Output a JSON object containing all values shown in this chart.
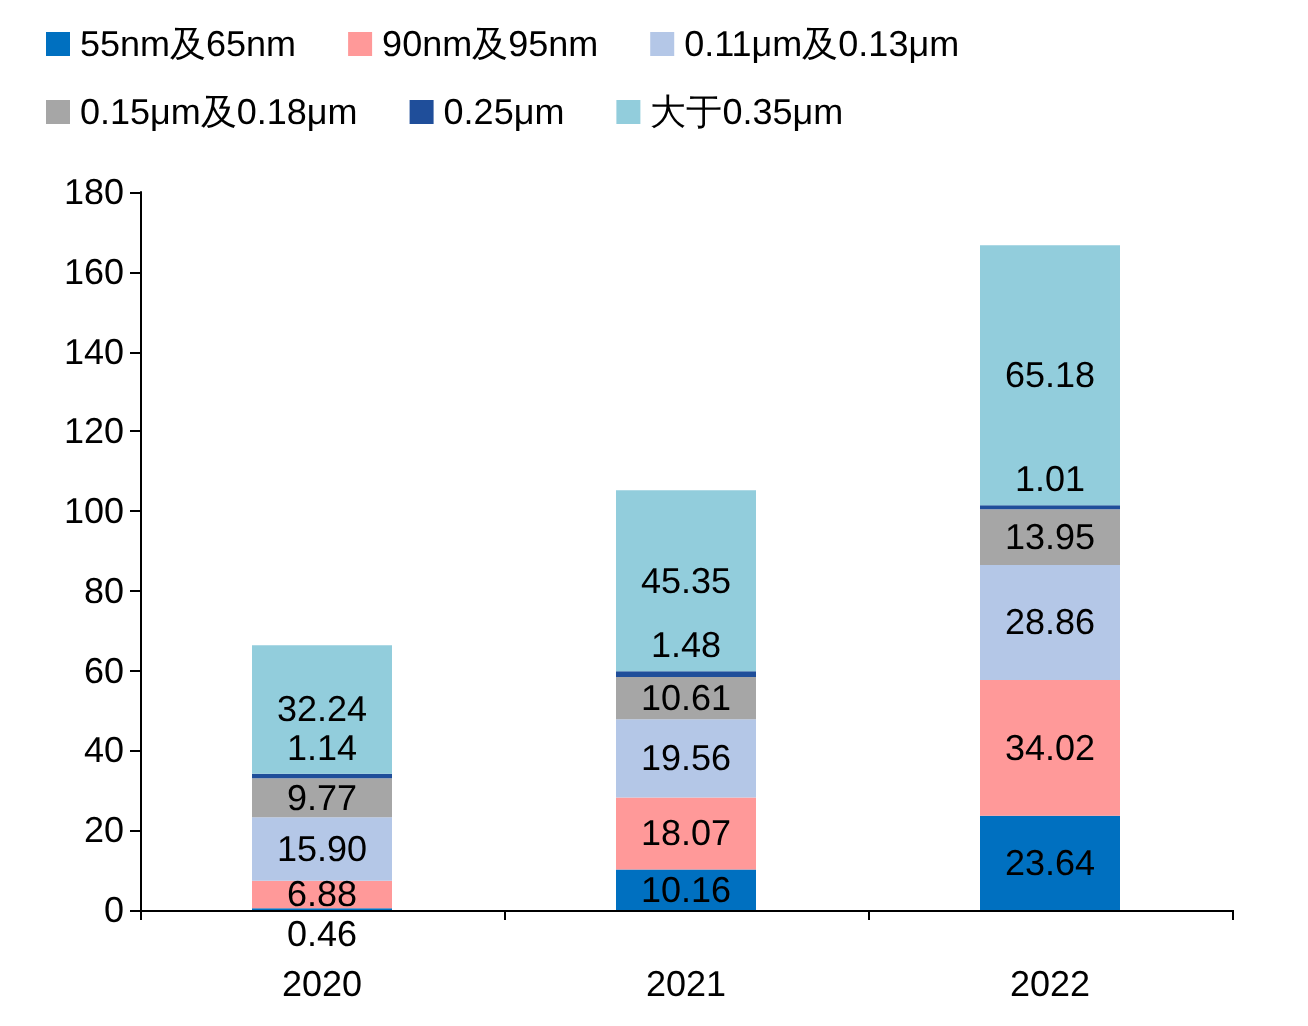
{
  "chart_data": {
    "type": "bar",
    "stacked": true,
    "categories": [
      "2020",
      "2021",
      "2022"
    ],
    "series": [
      {
        "name": "55nm及65nm",
        "color": "#0070c0",
        "values": [
          0.46,
          10.16,
          23.64
        ],
        "value_labels": [
          "0.46",
          "10.16",
          "23.64"
        ]
      },
      {
        "name": "90nm及95nm",
        "color": "#ff9999",
        "values": [
          6.88,
          18.07,
          34.02
        ],
        "value_labels": [
          "6.88",
          "18.07",
          "34.02"
        ]
      },
      {
        "name": "0.11μm及0.13μm",
        "color": "#b4c7e7",
        "values": [
          15.9,
          19.56,
          28.86
        ],
        "value_labels": [
          "15.90",
          "19.56",
          "28.86"
        ]
      },
      {
        "name": "0.15μm及0.18μm",
        "color": "#a6a6a6",
        "values": [
          9.77,
          10.61,
          13.95
        ],
        "value_labels": [
          "9.77",
          "10.61",
          "13.95"
        ]
      },
      {
        "name": "0.25μm",
        "color": "#1f4e9a",
        "values": [
          1.14,
          1.48,
          1.01
        ],
        "value_labels": [
          "1.14",
          "1.48",
          "1.01"
        ]
      },
      {
        "name": "大于0.35μm",
        "color": "#92cddc",
        "values": [
          32.24,
          45.35,
          65.18
        ],
        "value_labels": [
          "32.24",
          "45.35",
          "65.18"
        ]
      }
    ],
    "ylim": [
      0,
      180
    ],
    "yticks": [
      0,
      20,
      40,
      60,
      80,
      100,
      120,
      140,
      160,
      180
    ],
    "grid": false,
    "legend": "top"
  }
}
